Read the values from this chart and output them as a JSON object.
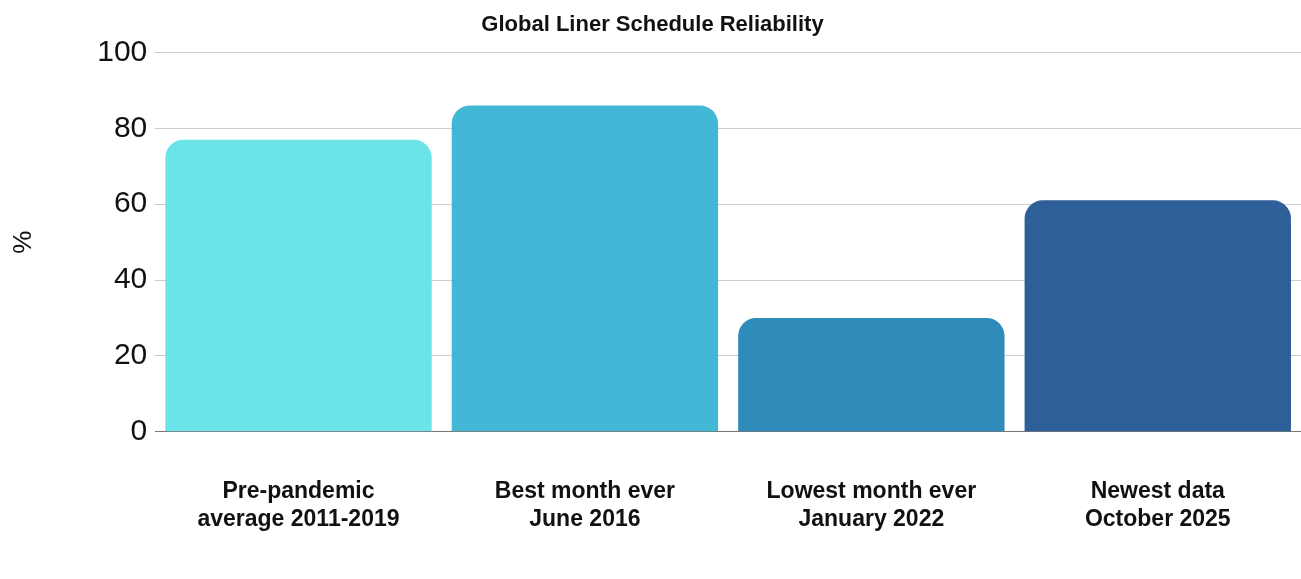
{
  "chart_data": {
    "type": "bar",
    "title": "Global Liner Schedule Reliability",
    "ylabel": "%",
    "categories": [
      "Pre-pandemic average 2011-2019",
      "Best month ever June 2016",
      "Lowest month ever January 2022",
      "Newest data October 2025"
    ],
    "values": [
      77,
      86,
      30,
      61
    ],
    "colors": [
      "#6ae4e8",
      "#43b7d6",
      "#2e8bba",
      "#2e5f98"
    ],
    "ylim": [
      0,
      100
    ],
    "yticks": [
      0,
      20,
      40,
      60,
      80,
      100
    ],
    "grid": "y",
    "legend": false
  }
}
